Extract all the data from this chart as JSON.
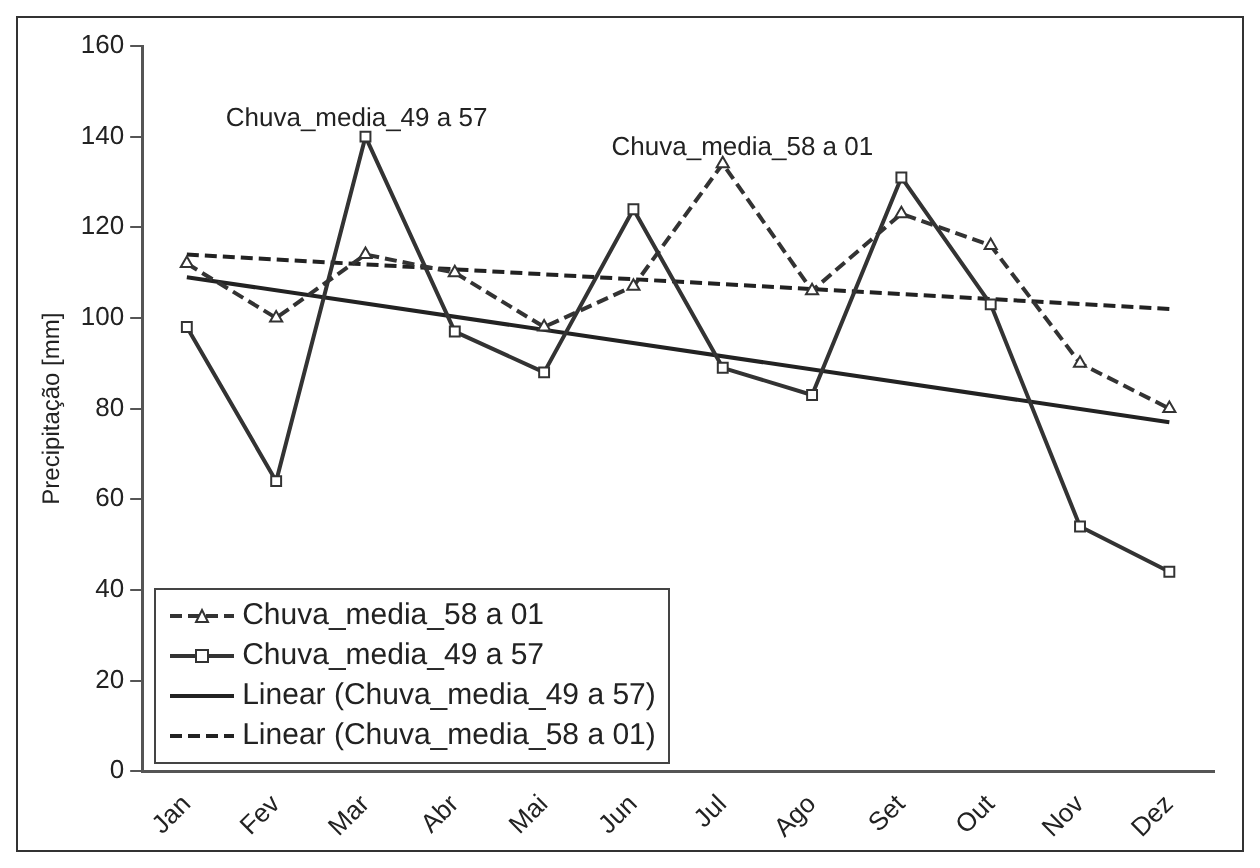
{
  "chart_data": {
    "type": "line",
    "ylabel": "Precipitação [mm]",
    "categories": [
      "Jan",
      "Fev",
      "Mar",
      "Abr",
      "Mai",
      "Jun",
      "Jul",
      "Ago",
      "Set",
      "Out",
      "Nov",
      "Dez"
    ],
    "series": [
      {
        "name": "Chuva_media_58 a 01",
        "color": "#333333",
        "marker": "triangle",
        "line_style": "dashed",
        "values": [
          112,
          100,
          114,
          110,
          98,
          107,
          134,
          106,
          123,
          116,
          90,
          80
        ]
      },
      {
        "name": "Chuva_media_49 a 57",
        "color": "#333333",
        "marker": "square",
        "line_style": "solid",
        "values": [
          98,
          64,
          140,
          97,
          88,
          124,
          89,
          83,
          131,
          103,
          54,
          44
        ]
      },
      {
        "name": "Linear (Chuva_media_49 a 57)",
        "color": "#222222",
        "marker": "none",
        "line_style": "solid",
        "x": [
          "Jan",
          "Dez"
        ],
        "values": [
          109,
          77
        ]
      },
      {
        "name": "Linear (Chuva_media_58 a 01)",
        "color": "#222222",
        "marker": "none",
        "line_style": "dashed",
        "x": [
          "Jan",
          "Dez"
        ],
        "values": [
          114,
          102
        ]
      }
    ],
    "ylim": [
      0,
      160
    ],
    "yticks": [
      0,
      20,
      40,
      60,
      80,
      100,
      120,
      140,
      160
    ],
    "grid": false,
    "legend": "bottom left",
    "annotations": [
      "Chuva_media_49 a 57",
      "Chuva_media_58 a 01"
    ]
  }
}
